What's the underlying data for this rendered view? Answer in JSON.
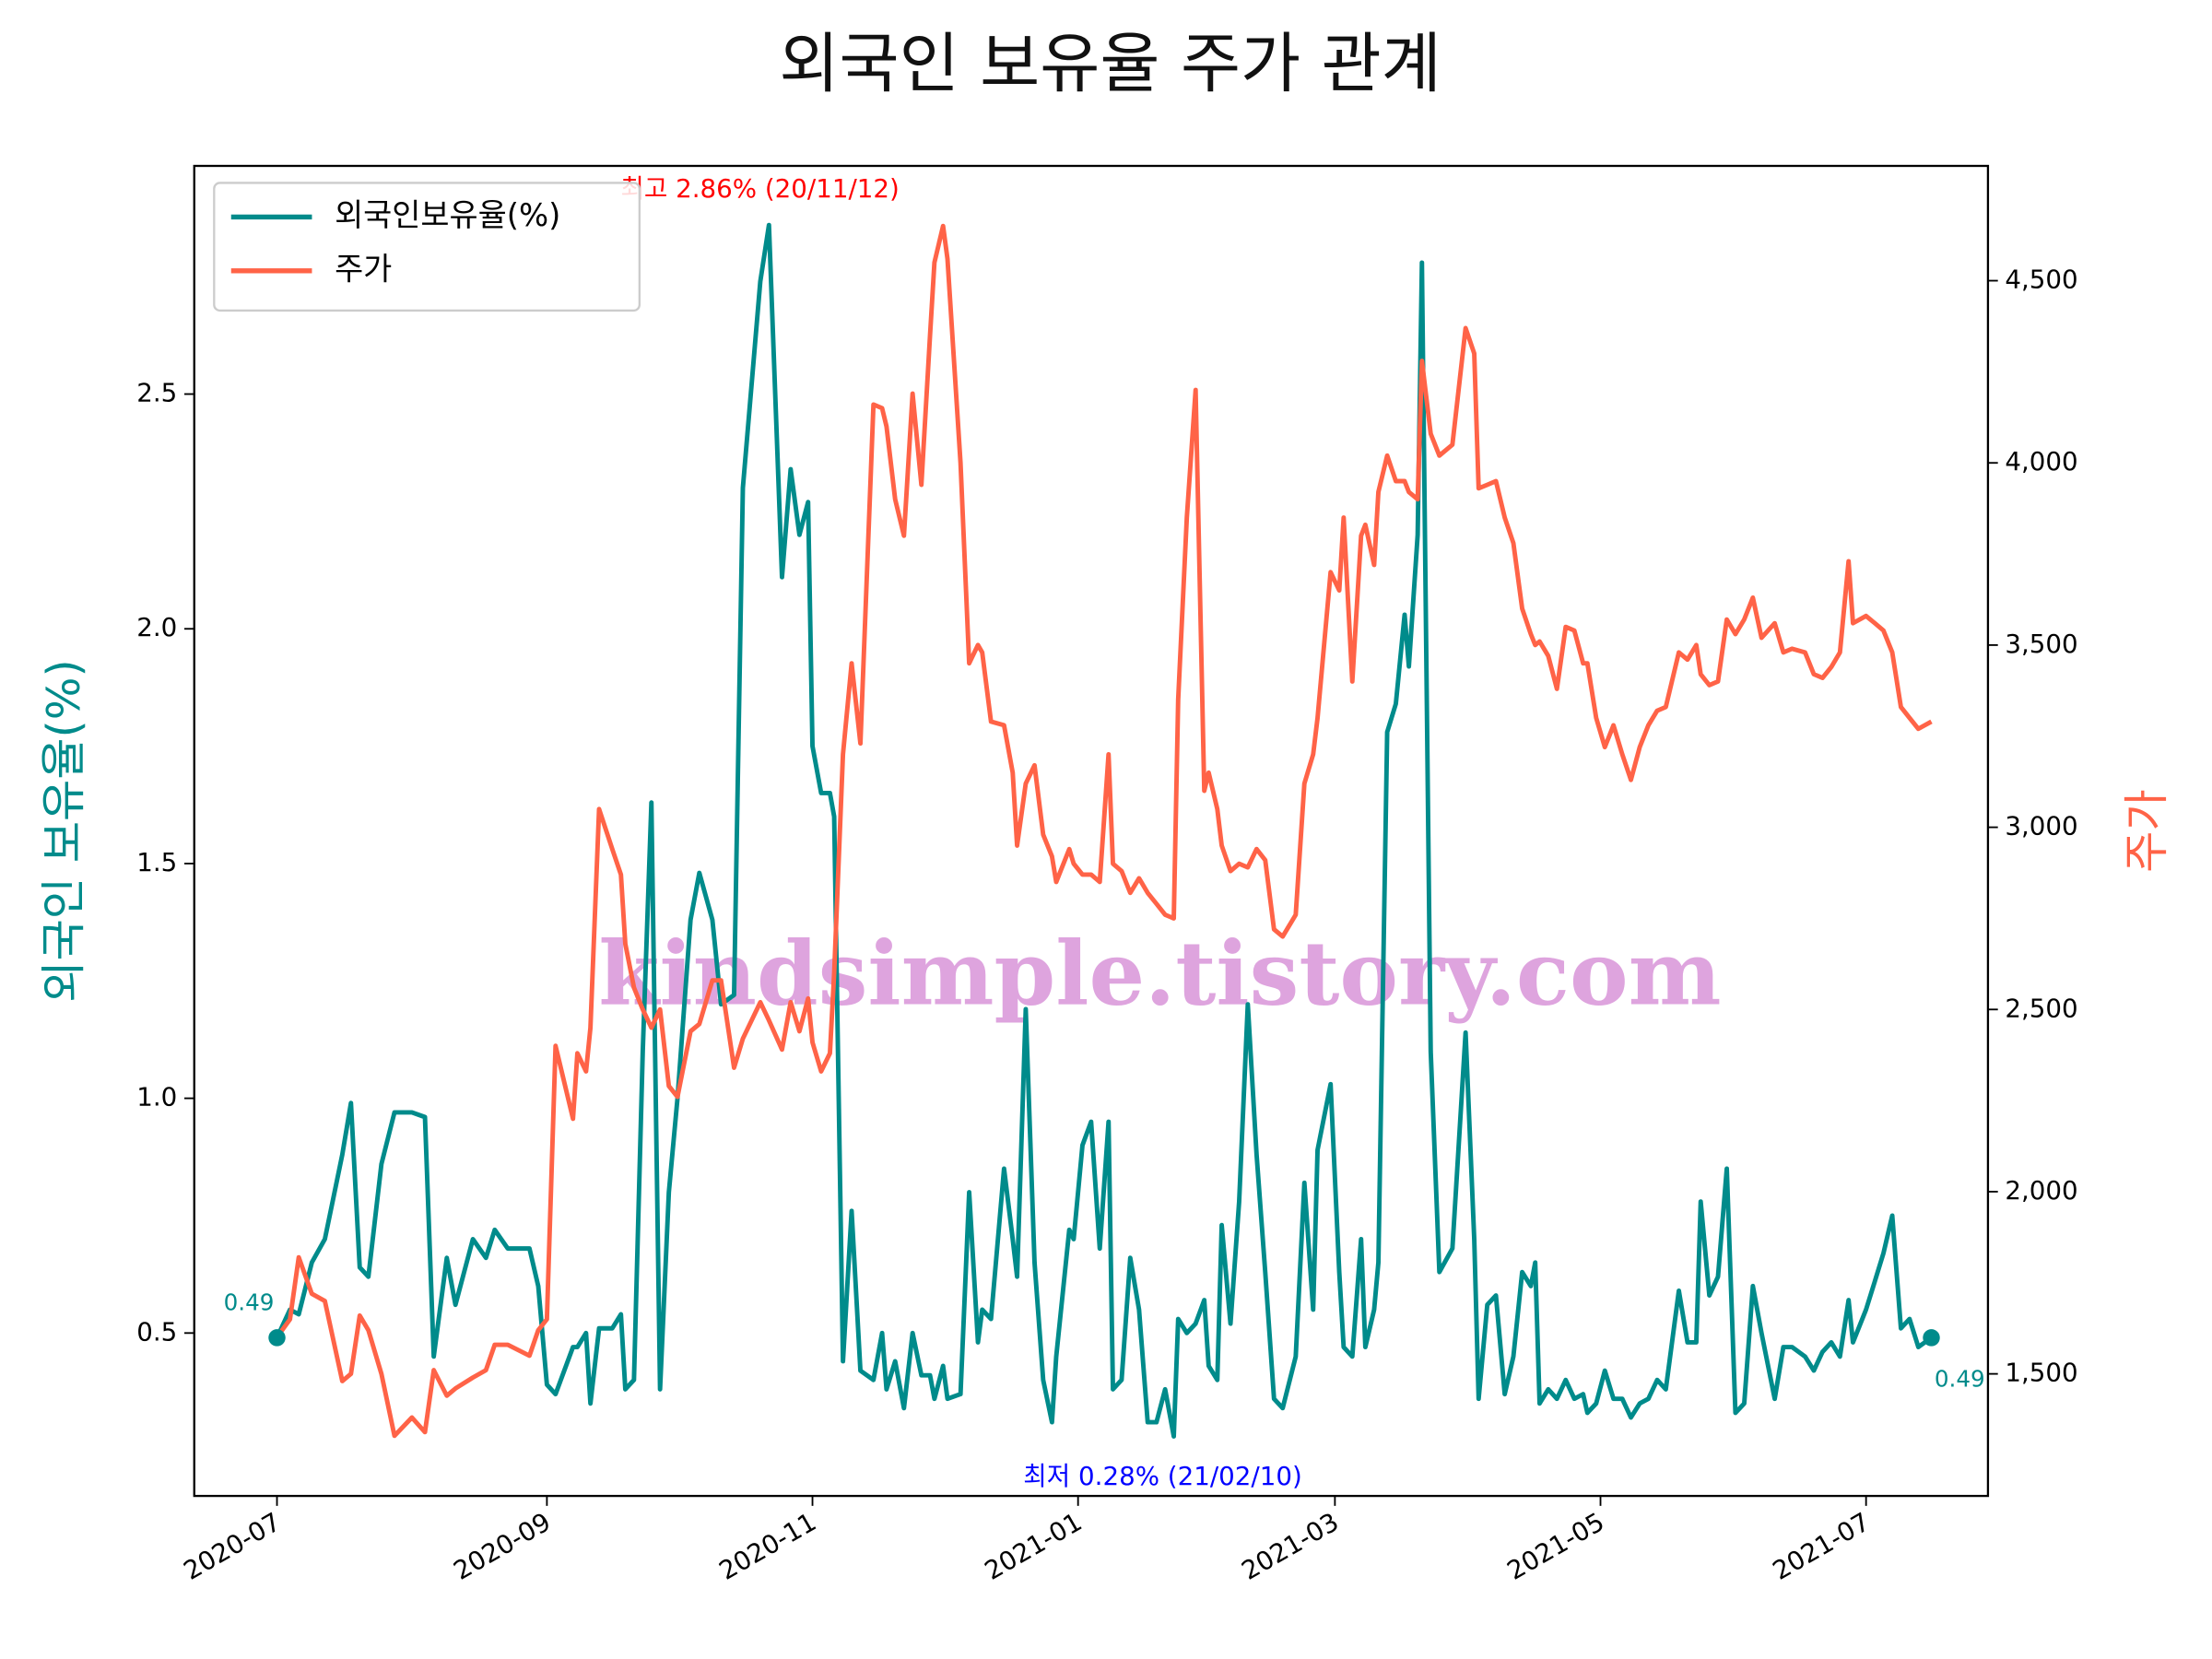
{
  "chart_data": {
    "type": "line",
    "title": "외국인 보유율 주가 관계",
    "y_label": "외국인 보유율(%)",
    "y2_label": "주가",
    "watermark": "kindsimple.tistory.com",
    "annotations": [
      "최고 2.86% (20/11/12)",
      "최저 0.28% (21/02/10)"
    ],
    "start_label": "0.49",
    "end_label": "0.49",
    "legend": "upper left",
    "xlim": [
      "2020-06-12",
      "2021-07-29"
    ],
    "xticks": [
      "2020-07",
      "2020-09",
      "2020-11",
      "2021-01",
      "2021-03",
      "2021-05",
      "2021-07"
    ],
    "ylim": [
      0.153,
      2.986
    ],
    "yticks": [
      0.5,
      {
        "value": 1,
        "label": "1.0"
      },
      1.5,
      {
        "value": 2,
        "label": "2.0"
      },
      2.5
    ],
    "y2lim": [
      1165,
      4815
    ],
    "y2ticks": [
      {
        "value": 1500,
        "label": "1,500"
      },
      {
        "value": 2000,
        "label": "2,000"
      },
      {
        "value": 2500,
        "label": "2,500"
      },
      {
        "value": 3000,
        "label": "3,000"
      },
      {
        "value": 3500,
        "label": "3,500"
      },
      {
        "value": 4000,
        "label": "4,000"
      },
      {
        "value": 4500,
        "label": "4,500"
      }
    ],
    "x": [
      "2020-07-01",
      "2020-07-04",
      "2020-07-06",
      "2020-07-09",
      "2020-07-12",
      "2020-07-16",
      "2020-07-18",
      "2020-07-20",
      "2020-07-22",
      "2020-07-25",
      "2020-07-28",
      "2020-08-01",
      "2020-08-04",
      "2020-08-06",
      "2020-08-09",
      "2020-08-11",
      "2020-08-15",
      "2020-08-18",
      "2020-08-20",
      "2020-08-23",
      "2020-08-28",
      "2020-08-30",
      "2020-09-01",
      "2020-09-03",
      "2020-09-07",
      "2020-09-08",
      "2020-09-10",
      "2020-09-11",
      "2020-09-13",
      "2020-09-16",
      "2020-09-18",
      "2020-09-19",
      "2020-09-21",
      "2020-09-23",
      "2020-09-25",
      "2020-09-27",
      "2020-09-29",
      "2020-10-01",
      "2020-10-04",
      "2020-10-06",
      "2020-10-09",
      "2020-10-11",
      "2020-10-14",
      "2020-10-16",
      "2020-10-20",
      "2020-10-22",
      "2020-10-25",
      "2020-10-27",
      "2020-10-29",
      "2020-10-31",
      "2020-11-01",
      "2020-11-03",
      "2020-11-05",
      "2020-11-06",
      "2020-11-08",
      "2020-11-10",
      "2020-11-12",
      "2020-11-15",
      "2020-11-17",
      "2020-11-18",
      "2020-11-20",
      "2020-11-22",
      "2020-11-24",
      "2020-11-26",
      "2020-11-28",
      "2020-11-29",
      "2020-12-01",
      "2020-12-02",
      "2020-12-05",
      "2020-12-07",
      "2020-12-09",
      "2020-12-10",
      "2020-12-12",
      "2020-12-15",
      "2020-12-17",
      "2020-12-18",
      "2020-12-20",
      "2020-12-22",
      "2020-12-24",
      "2020-12-26",
      "2020-12-27",
      "2020-12-30",
      "2020-12-31",
      "2021-01-02",
      "2021-01-04",
      "2021-01-06",
      "2021-01-08",
      "2021-01-09",
      "2021-01-11",
      "2021-01-13",
      "2021-01-15",
      "2021-01-17",
      "2021-01-19",
      "2021-01-21",
      "2021-01-23",
      "2021-01-24",
      "2021-01-26",
      "2021-01-28",
      "2021-01-30",
      "2021-01-31",
      "2021-02-02",
      "2021-02-03",
      "2021-02-05",
      "2021-02-07",
      "2021-02-09",
      "2021-02-11",
      "2021-02-13",
      "2021-02-15",
      "2021-02-17",
      "2021-02-20",
      "2021-02-22",
      "2021-02-24",
      "2021-02-25",
      "2021-02-28",
      "2021-03-02",
      "2021-03-03",
      "2021-03-05",
      "2021-03-07",
      "2021-03-08",
      "2021-03-10",
      "2021-03-11",
      "2021-03-13",
      "2021-03-15",
      "2021-03-17",
      "2021-03-18",
      "2021-03-20",
      "2021-03-21",
      "2021-03-23",
      "2021-03-25",
      "2021-03-28",
      "2021-03-31",
      "2021-04-02",
      "2021-04-03",
      "2021-04-05",
      "2021-04-07",
      "2021-04-09",
      "2021-04-11",
      "2021-04-13",
      "2021-04-15",
      "2021-04-16",
      "2021-04-17",
      "2021-04-19",
      "2021-04-21",
      "2021-04-23",
      "2021-04-25",
      "2021-04-27",
      "2021-04-28",
      "2021-04-30",
      "2021-05-02",
      "2021-05-04",
      "2021-05-06",
      "2021-05-08",
      "2021-05-10",
      "2021-05-12",
      "2021-05-14",
      "2021-05-16",
      "2021-05-19",
      "2021-05-21",
      "2021-05-23",
      "2021-05-24",
      "2021-05-26",
      "2021-05-28",
      "2021-05-30",
      "2021-06-01",
      "2021-06-03",
      "2021-06-05",
      "2021-06-07",
      "2021-06-10",
      "2021-06-12",
      "2021-06-14",
      "2021-06-17",
      "2021-06-19",
      "2021-06-21",
      "2021-06-23",
      "2021-06-25",
      "2021-06-27",
      "2021-06-28",
      "2021-07-01",
      "2021-07-03",
      "2021-07-05",
      "2021-07-07",
      "2021-07-09",
      "2021-07-11",
      "2021-07-13",
      "2021-07-16"
    ],
    "series": [
      {
        "name": "외국인보유율(%)",
        "color": "#008b8b",
        "values": [
          0.49,
          0.55,
          0.54,
          0.65,
          0.7,
          0.88,
          0.99,
          0.64,
          0.62,
          0.86,
          0.97,
          0.97,
          0.96,
          0.45,
          0.66,
          0.56,
          0.7,
          0.66,
          0.72,
          0.68,
          0.68,
          0.6,
          0.39,
          0.37,
          0.47,
          0.47,
          0.5,
          0.35,
          0.51,
          0.51,
          0.54,
          0.38,
          0.4,
          1.1,
          1.63,
          0.38,
          0.8,
          1.0,
          1.38,
          1.48,
          1.38,
          1.2,
          1.22,
          2.3,
          2.74,
          2.86,
          2.11,
          2.34,
          2.2,
          2.27,
          1.75,
          1.65,
          1.65,
          1.6,
          0.44,
          0.76,
          0.42,
          0.4,
          0.5,
          0.38,
          0.44,
          0.34,
          0.5,
          0.41,
          0.41,
          0.36,
          0.43,
          0.36,
          0.37,
          0.8,
          0.48,
          0.55,
          0.53,
          0.85,
          0.7,
          0.62,
          1.19,
          0.65,
          0.4,
          0.31,
          0.45,
          0.72,
          0.7,
          0.9,
          0.95,
          0.68,
          0.95,
          0.38,
          0.4,
          0.66,
          0.55,
          0.31,
          0.31,
          0.38,
          0.28,
          0.53,
          0.5,
          0.52,
          0.57,
          0.43,
          0.4,
          0.73,
          0.52,
          0.78,
          1.2,
          0.88,
          0.63,
          0.36,
          0.34,
          0.45,
          0.82,
          0.55,
          0.89,
          1.03,
          0.63,
          0.47,
          0.45,
          0.7,
          0.47,
          0.55,
          0.65,
          1.78,
          1.84,
          2.03,
          1.92,
          2.2,
          2.78,
          1.1,
          0.63,
          0.68,
          1.14,
          0.7,
          0.36,
          0.56,
          0.58,
          0.37,
          0.45,
          0.63,
          0.6,
          0.65,
          0.35,
          0.38,
          0.36,
          0.4,
          0.36,
          0.37,
          0.33,
          0.35,
          0.42,
          0.36,
          0.36,
          0.32,
          0.35,
          0.36,
          0.4,
          0.38,
          0.59,
          0.48,
          0.48,
          0.78,
          0.58,
          0.62,
          0.85,
          0.33,
          0.35,
          0.6,
          0.5,
          0.36,
          0.47,
          0.47,
          0.45,
          0.42,
          0.46,
          0.48,
          0.45,
          0.57,
          0.48,
          0.55,
          0.61,
          0.67,
          0.75,
          0.51,
          0.53,
          0.47,
          0.49
        ]
      },
      {
        "name": "주가",
        "color": "#ff6347",
        "axis": "y2",
        "values": [
          1600,
          1650,
          1820,
          1720,
          1700,
          1480,
          1500,
          1660,
          1620,
          1500,
          1330,
          1380,
          1340,
          1510,
          1440,
          1460,
          1490,
          1510,
          1580,
          1580,
          1550,
          1620,
          1650,
          2400,
          2200,
          2380,
          2330,
          2450,
          3050,
          2940,
          2870,
          2680,
          2560,
          2500,
          2450,
          2500,
          2290,
          2260,
          2440,
          2460,
          2580,
          2580,
          2340,
          2420,
          2520,
          2470,
          2390,
          2520,
          2440,
          2530,
          2410,
          2330,
          2380,
          2600,
          3200,
          3450,
          3230,
          4160,
          4150,
          4100,
          3900,
          3800,
          4190,
          3940,
          4350,
          4550,
          4650,
          4560,
          4000,
          3450,
          3500,
          3480,
          3290,
          3280,
          3150,
          2950,
          3120,
          3170,
          2980,
          2920,
          2850,
          2940,
          2900,
          2870,
          2870,
          2850,
          3200,
          2900,
          2880,
          2820,
          2860,
          2820,
          2790,
          2760,
          2750,
          3350,
          3850,
          4200,
          3100,
          3150,
          3050,
          2950,
          2880,
          2900,
          2890,
          2940,
          2910,
          2720,
          2700,
          2760,
          3120,
          3200,
          3300,
          3700,
          3650,
          3850,
          3400,
          3800,
          3830,
          3720,
          3920,
          4020,
          3950,
          3950,
          3920,
          3900,
          4280,
          4080,
          4020,
          4050,
          4370,
          4300,
          3930,
          3940,
          3950,
          3850,
          3780,
          3600,
          3530,
          3500,
          3510,
          3470,
          3380,
          3550,
          3540,
          3450,
          3450,
          3300,
          3220,
          3280,
          3200,
          3130,
          3220,
          3280,
          3320,
          3330,
          3480,
          3460,
          3500,
          3420,
          3390,
          3400,
          3570,
          3530,
          3570,
          3630,
          3520,
          3560,
          3480,
          3490,
          3480,
          3420,
          3410,
          3440,
          3480,
          3730,
          3560,
          3580,
          3560,
          3540,
          3480,
          3330,
          3300,
          3270,
          3290
        ]
      }
    ]
  }
}
